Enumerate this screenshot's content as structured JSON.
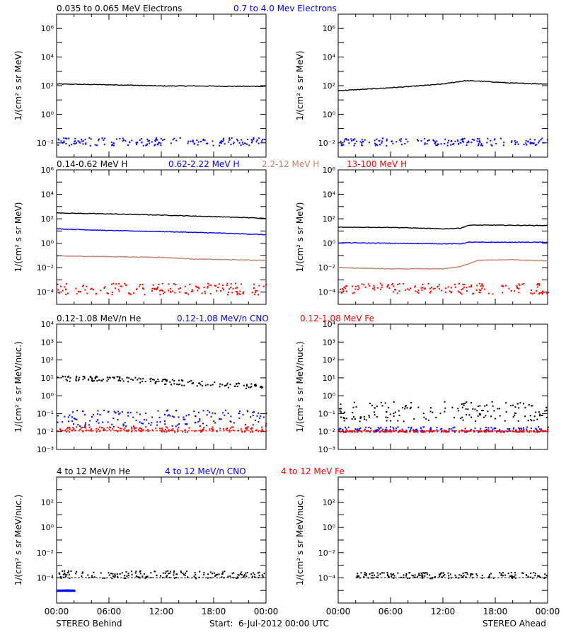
{
  "colors": {
    "black": "#000000",
    "blue": "#0000ff",
    "tan": "#c0806a",
    "red": "#ff0000"
  },
  "footer": {
    "left": "STEREO Behind",
    "center": "Start:  6-Jul-2012 00:00 UTC",
    "right": "STEREO Ahead"
  },
  "chart_data": [
    {
      "type": "scatter",
      "row": 1,
      "spacecraft": "STEREO Behind",
      "ylabel": "1/(cm² s sr MeV)",
      "yscale": "log",
      "ylim": [
        0.001,
        10000000
      ],
      "yticks": [
        {
          "value": 0.01,
          "label": "10⁻²"
        },
        {
          "value": 1,
          "label": "10⁰"
        },
        {
          "value": 100,
          "label": "10²"
        },
        {
          "value": 10000,
          "label": "10⁴"
        },
        {
          "value": 1000000,
          "label": "10⁶"
        }
      ],
      "xlim": [
        0,
        24
      ],
      "xticks": [
        "00:00",
        "06:00",
        "12:00",
        "18:00",
        "00:00"
      ],
      "legend": [
        {
          "label": "0.035 to 0.065 MeV Electrons",
          "color": "black"
        },
        {
          "label": "0.7 to 4.0 Mev Electrons",
          "color": "blue"
        }
      ],
      "series": [
        {
          "color": "black",
          "style": "line",
          "x": [
            0,
            4,
            8,
            12,
            16,
            20,
            24
          ],
          "y": [
            130,
            120,
            110,
            95,
            95,
            90,
            90
          ]
        },
        {
          "color": "blue",
          "style": "dots",
          "x": [
            0,
            24
          ],
          "y": [
            0.015,
            0.015
          ],
          "scatter_low": 0.007,
          "scatter_high": 0.025
        }
      ]
    },
    {
      "type": "scatter",
      "row": 1,
      "spacecraft": "STEREO Ahead",
      "ylabel": "1/(cm² s sr MeV)",
      "yscale": "log",
      "ylim": [
        0.001,
        10000000
      ],
      "yticks": [
        {
          "value": 0.01,
          "label": "10⁻²"
        },
        {
          "value": 1,
          "label": "10⁰"
        },
        {
          "value": 100,
          "label": "10²"
        },
        {
          "value": 10000,
          "label": "10⁴"
        },
        {
          "value": 1000000,
          "label": "10⁶"
        }
      ],
      "xlim": [
        0,
        24
      ],
      "xticks": [
        "00:00",
        "06:00",
        "12:00",
        "18:00",
        "00:00"
      ],
      "legend": [],
      "series": [
        {
          "color": "black",
          "style": "line",
          "x": [
            0,
            4,
            8,
            12,
            14.5,
            16,
            20,
            24
          ],
          "y": [
            45,
            60,
            85,
            130,
            220,
            210,
            150,
            130
          ]
        },
        {
          "color": "blue",
          "style": "dots",
          "x": [
            0,
            24
          ],
          "y": [
            0.014,
            0.014
          ],
          "scatter_low": 0.007,
          "scatter_high": 0.024
        }
      ]
    },
    {
      "type": "scatter",
      "row": 2,
      "spacecraft": "STEREO Behind",
      "ylabel": "1/(cm² s sr MeV)",
      "yscale": "log",
      "ylim": [
        1e-05,
        1000000
      ],
      "yticks": [
        {
          "value": 0.0001,
          "label": "10⁻⁴"
        },
        {
          "value": 0.01,
          "label": "10⁻²"
        },
        {
          "value": 1,
          "label": "10⁰"
        },
        {
          "value": 100,
          "label": "10²"
        },
        {
          "value": 10000,
          "label": "10⁴"
        },
        {
          "value": 1000000,
          "label": "10⁶"
        }
      ],
      "xlim": [
        0,
        24
      ],
      "xticks": [
        "00:00",
        "06:00",
        "12:00",
        "18:00",
        "00:00"
      ],
      "legend": [
        {
          "label": "0.14-0.62 MeV H",
          "color": "black"
        },
        {
          "label": "0.62-2.22 MeV H",
          "color": "blue"
        },
        {
          "label": "2.2-12 MeV H",
          "color": "tan"
        },
        {
          "label": "13-100 MeV H",
          "color": "red"
        }
      ],
      "series": [
        {
          "color": "black",
          "style": "line",
          "x": [
            0,
            6,
            12,
            18,
            24
          ],
          "y": [
            300,
            250,
            200,
            150,
            110
          ]
        },
        {
          "color": "blue",
          "style": "line",
          "x": [
            0,
            6,
            12,
            18,
            24
          ],
          "y": [
            15,
            11,
            9,
            7,
            5
          ]
        },
        {
          "color": "tan",
          "style": "line",
          "x": [
            0,
            6,
            12,
            16,
            24
          ],
          "y": [
            0.09,
            0.08,
            0.07,
            0.05,
            0.04
          ]
        },
        {
          "color": "red",
          "style": "dots",
          "x": [
            0,
            24
          ],
          "y": [
            0.0002,
            0.0002
          ],
          "scatter_low": 7e-05,
          "scatter_high": 0.0006
        }
      ]
    },
    {
      "type": "scatter",
      "row": 2,
      "spacecraft": "STEREO Ahead",
      "ylabel": "1/(cm² s sr MeV)",
      "yscale": "log",
      "ylim": [
        1e-05,
        1000000
      ],
      "yticks": [
        {
          "value": 0.0001,
          "label": "10⁻⁴"
        },
        {
          "value": 0.01,
          "label": "10⁻²"
        },
        {
          "value": 1,
          "label": "10⁰"
        },
        {
          "value": 100,
          "label": "10²"
        },
        {
          "value": 10000,
          "label": "10⁴"
        },
        {
          "value": 1000000,
          "label": "10⁶"
        }
      ],
      "xlim": [
        0,
        24
      ],
      "xticks": [
        "00:00",
        "06:00",
        "12:00",
        "18:00",
        "00:00"
      ],
      "legend": [],
      "series": [
        {
          "color": "black",
          "style": "line",
          "x": [
            0,
            6,
            12,
            14,
            15,
            18,
            24
          ],
          "y": [
            20,
            20,
            15,
            17,
            30,
            30,
            28
          ]
        },
        {
          "color": "blue",
          "style": "line",
          "x": [
            0,
            6,
            12,
            14,
            15,
            18,
            24
          ],
          "y": [
            1.1,
            1.0,
            0.9,
            0.9,
            1.2,
            1.2,
            1.2
          ]
        },
        {
          "color": "tan",
          "style": "line",
          "x": [
            0,
            6,
            12,
            14,
            16,
            20,
            24
          ],
          "y": [
            0.01,
            0.008,
            0.008,
            0.012,
            0.04,
            0.045,
            0.035
          ]
        },
        {
          "color": "red",
          "style": "dots",
          "x": [
            0,
            24
          ],
          "y": [
            0.0002,
            0.0002
          ],
          "scatter_low": 8e-05,
          "scatter_high": 0.0006
        }
      ]
    },
    {
      "type": "scatter",
      "row": 3,
      "spacecraft": "STEREO Behind",
      "ylabel": "1/(cm² s sr MeV/nuc.)",
      "yscale": "log",
      "ylim": [
        0.001,
        10000
      ],
      "yticks": [
        {
          "value": 0.001,
          "label": "10⁻³"
        },
        {
          "value": 0.01,
          "label": "10⁻²"
        },
        {
          "value": 0.1,
          "label": "10⁻¹"
        },
        {
          "value": 1,
          "label": "10⁰"
        },
        {
          "value": 10,
          "label": "10¹"
        },
        {
          "value": 100,
          "label": "10²"
        },
        {
          "value": 1000,
          "label": "10³"
        },
        {
          "value": 10000,
          "label": "10⁴"
        }
      ],
      "xlim": [
        0,
        24
      ],
      "xticks": [
        "00:00",
        "06:00",
        "12:00",
        "18:00",
        "00:00"
      ],
      "legend": [
        {
          "label": "0.12-1.08 MeV/n He",
          "color": "black"
        },
        {
          "label": "0.12-1.08 MeV/n CNO",
          "color": "blue"
        },
        {
          "label": "0.12-1.08 MeV Fe",
          "color": "red"
        }
      ],
      "series": [
        {
          "color": "black",
          "style": "dots",
          "x": [
            0,
            8,
            14,
            20,
            24
          ],
          "y": [
            10,
            9,
            6,
            4,
            3.5
          ],
          "scatter_low": 0.7,
          "scatter_high": 1.4
        },
        {
          "color": "blue",
          "style": "dots",
          "x": [
            0,
            24
          ],
          "y": [
            0.05,
            0.045
          ],
          "scatter_low": 0.02,
          "scatter_high": 0.17
        },
        {
          "color": "red",
          "style": "dots",
          "x": [
            0,
            24
          ],
          "y": [
            0.011,
            0.011
          ],
          "scatter_low": 0.01,
          "scatter_high": 0.02
        }
      ]
    },
    {
      "type": "scatter",
      "row": 3,
      "spacecraft": "STEREO Ahead",
      "ylabel": "1/(cm² s sr MeV/nuc.)",
      "yscale": "log",
      "ylim": [
        0.001,
        10000
      ],
      "yticks": [
        {
          "value": 0.001,
          "label": "10⁻³"
        },
        {
          "value": 0.01,
          "label": "10⁻²"
        },
        {
          "value": 0.1,
          "label": "10⁻¹"
        },
        {
          "value": 1,
          "label": "10⁰"
        },
        {
          "value": 10,
          "label": "10¹"
        },
        {
          "value": 100,
          "label": "10²"
        },
        {
          "value": 1000,
          "label": "10³"
        },
        {
          "value": 10000,
          "label": "10⁴"
        }
      ],
      "xlim": [
        0,
        24
      ],
      "xticks": [
        "00:00",
        "06:00",
        "12:00",
        "18:00",
        "00:00"
      ],
      "legend": [],
      "series": [
        {
          "color": "black",
          "style": "dots",
          "x": [
            0,
            24
          ],
          "y": [
            0.2,
            0.2
          ],
          "scatter_low": 0.04,
          "scatter_high": 0.5
        },
        {
          "color": "blue",
          "style": "dots",
          "x": [
            0,
            24
          ],
          "y": [
            0.011,
            0.011
          ],
          "scatter_low": 0.01,
          "scatter_high": 0.02
        },
        {
          "color": "red",
          "style": "dots",
          "x": [
            0,
            24
          ],
          "y": [
            0.011,
            0.011
          ],
          "scatter_low": 0.01,
          "scatter_high": 0.012
        }
      ]
    },
    {
      "type": "scatter",
      "row": 4,
      "spacecraft": "STEREO Behind",
      "ylabel": "1/(cm² s sr MeV/nuc.)",
      "yscale": "log",
      "ylim": [
        1e-06,
        10000
      ],
      "yticks": [
        {
          "value": 0.0001,
          "label": "10⁻⁴"
        },
        {
          "value": 0.01,
          "label": "10⁻²"
        },
        {
          "value": 1,
          "label": "10⁰"
        },
        {
          "value": 100,
          "label": "10²"
        }
      ],
      "xlim": [
        0,
        24
      ],
      "xticks": [
        "00:00",
        "06:00",
        "12:00",
        "18:00",
        "00:00"
      ],
      "legend": [
        {
          "label": "4 to 12 MeV/n He",
          "color": "black"
        },
        {
          "label": "4 to 12 MeV/n CNO",
          "color": "blue"
        },
        {
          "label": "4 to 12 MeV Fe",
          "color": "red"
        }
      ],
      "series": [
        {
          "color": "black",
          "style": "dots",
          "x": [
            0,
            24
          ],
          "y": [
            0.0001,
            0.0001
          ],
          "scatter_low": 0.0001,
          "scatter_high": 0.0004
        },
        {
          "color": "blue",
          "style": "dots",
          "x": [
            0,
            2
          ],
          "y": [
            1.2e-05,
            1.2e-05
          ],
          "scatter_low": 1e-05,
          "scatter_high": 1.2e-05
        }
      ]
    },
    {
      "type": "scatter",
      "row": 4,
      "spacecraft": "STEREO Ahead",
      "ylabel": "1/(cm² s sr MeV/nuc.)",
      "yscale": "log",
      "ylim": [
        1e-06,
        10000
      ],
      "yticks": [
        {
          "value": 0.0001,
          "label": "10⁻⁴"
        },
        {
          "value": 0.01,
          "label": "10⁻²"
        },
        {
          "value": 1,
          "label": "10⁰"
        },
        {
          "value": 100,
          "label": "10²"
        }
      ],
      "xlim": [
        0,
        24
      ],
      "xticks": [
        "00:00",
        "06:00",
        "12:00",
        "18:00",
        "00:00"
      ],
      "legend": [],
      "series": [
        {
          "color": "black",
          "style": "dots",
          "x": [
            2,
            24
          ],
          "y": [
            0.0001,
            0.0001
          ],
          "scatter_low": 0.0001,
          "scatter_high": 0.0003
        }
      ]
    }
  ]
}
